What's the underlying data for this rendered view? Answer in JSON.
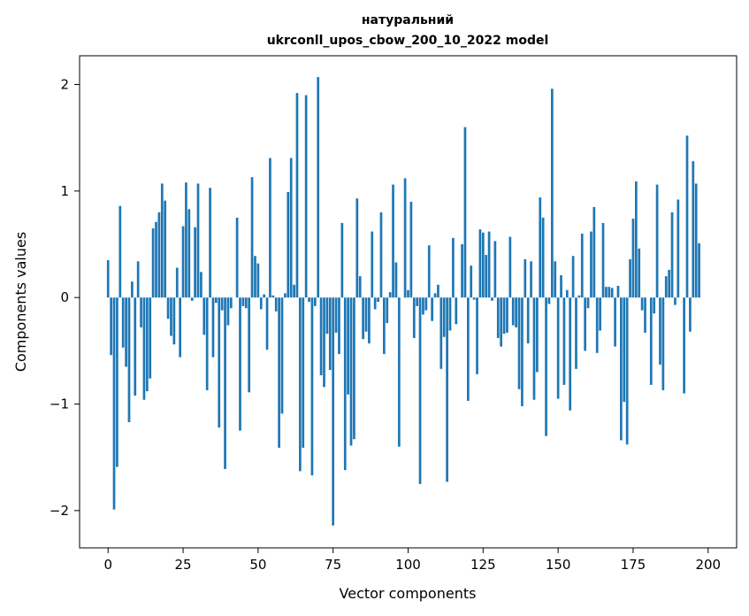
{
  "chart_data": {
    "type": "bar",
    "title_line1": "натуральний",
    "title_line2": "ukrconll_upos_cbow_200_10_2022 model",
    "xlabel": "Vector components",
    "ylabel": "Components values",
    "xlim": [
      -9.5,
      209.5
    ],
    "ylim": [
      -2.35,
      2.27
    ],
    "xticks": [
      0,
      25,
      50,
      75,
      100,
      125,
      150,
      175,
      200
    ],
    "yticks": [
      -2,
      -1,
      0,
      1,
      2
    ],
    "ytick_labels": [
      "−2",
      "−1",
      "0",
      "1",
      "2"
    ],
    "bar_color": "#1f77b4",
    "grid": false,
    "values": [
      0.35,
      -0.54,
      -1.99,
      -1.59,
      0.86,
      -0.47,
      -0.65,
      -1.17,
      0.15,
      -0.92,
      0.34,
      -0.28,
      -0.96,
      -0.88,
      -0.76,
      0.65,
      0.71,
      0.8,
      1.07,
      0.91,
      -0.2,
      -0.36,
      -0.44,
      0.28,
      -0.56,
      0.67,
      1.08,
      0.83,
      -0.03,
      0.66,
      1.07,
      0.24,
      -0.35,
      -0.87,
      1.03,
      -0.56,
      -0.05,
      -1.22,
      -0.12,
      -1.61,
      -0.26,
      -0.1,
      0.0,
      0.75,
      -1.25,
      -0.08,
      -0.1,
      -0.89,
      1.13,
      0.39,
      0.32,
      -0.11,
      0.03,
      -0.49,
      1.31,
      0.02,
      -0.13,
      -1.41,
      -1.09,
      0.04,
      0.99,
      1.31,
      0.12,
      1.92,
      -1.63,
      -1.41,
      1.9,
      -0.04,
      -1.67,
      -0.08,
      2.07,
      -0.73,
      -0.84,
      -0.34,
      -0.68,
      -2.14,
      -0.33,
      -0.53,
      0.7,
      -1.62,
      -0.91,
      -1.39,
      -1.33,
      0.93,
      0.2,
      -0.39,
      -0.32,
      -0.43,
      0.62,
      -0.11,
      -0.04,
      0.8,
      -0.53,
      -0.24,
      0.05,
      1.06,
      0.33,
      -1.4,
      0.0,
      1.12,
      0.07,
      0.9,
      -0.38,
      -0.08,
      -1.75,
      -0.16,
      -0.12,
      0.49,
      -0.22,
      0.04,
      0.12,
      -0.67,
      -0.37,
      -1.73,
      -0.31,
      0.56,
      -0.25,
      0.0,
      0.5,
      1.6,
      -0.97,
      0.3,
      -0.02,
      -0.72,
      0.64,
      0.61,
      0.4,
      0.62,
      -0.03,
      0.53,
      -0.38,
      -0.46,
      -0.34,
      -0.33,
      0.57,
      -0.26,
      -0.28,
      -0.86,
      -1.02,
      0.36,
      -0.43,
      0.34,
      -0.96,
      -0.7,
      0.94,
      0.75,
      -1.3,
      -0.06,
      1.96,
      0.34,
      -0.95,
      0.21,
      -0.82,
      0.07,
      -1.06,
      0.39,
      -0.67,
      0.02,
      0.6,
      -0.5,
      -0.1,
      0.62,
      0.85,
      -0.52,
      -0.31,
      0.7,
      0.1,
      0.1,
      0.09,
      -0.46,
      0.11,
      -1.34,
      -0.98,
      -1.38,
      0.36,
      0.74,
      1.09,
      0.46,
      -0.12,
      -0.33,
      0.0,
      -0.82,
      -0.15,
      1.06,
      -0.63,
      -0.87,
      0.2,
      0.26,
      0.8,
      -0.07,
      0.92,
      0.0,
      -0.9,
      1.52,
      -0.32,
      1.28,
      1.07,
      0.51
    ]
  }
}
